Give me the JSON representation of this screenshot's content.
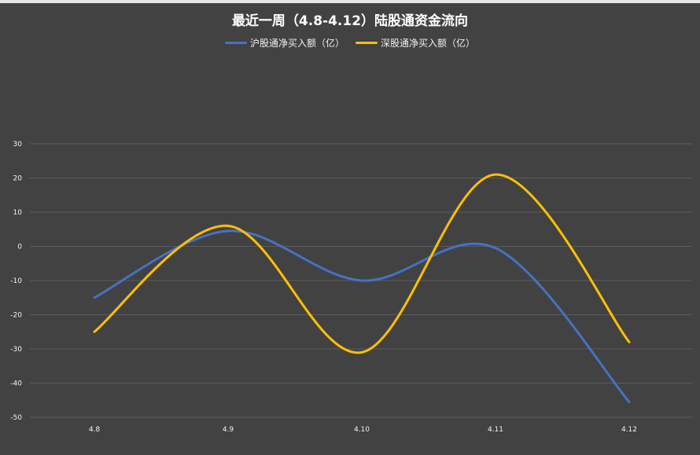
{
  "chart_data": {
    "type": "line",
    "title": "最近一周（4.8-4.12）陆股通资金流向",
    "categories": [
      "4.8",
      "4.9",
      "4.10",
      "4.11",
      "4.12"
    ],
    "ylim": [
      -50,
      30
    ],
    "yticks": [
      30,
      20,
      10,
      0,
      -10,
      -20,
      -30,
      -40,
      -50
    ],
    "grid": true,
    "legend_position": "top",
    "smooth": true,
    "series": [
      {
        "name": "沪股通净买入额（亿）",
        "values": [
          -15,
          4.5,
          -10,
          -0.5,
          -45.5
        ],
        "color": "#4472c4"
      },
      {
        "name": "深股通净买入额（亿）",
        "values": [
          -25,
          6,
          -31,
          21,
          -28
        ],
        "color": "#ffc000"
      }
    ]
  }
}
